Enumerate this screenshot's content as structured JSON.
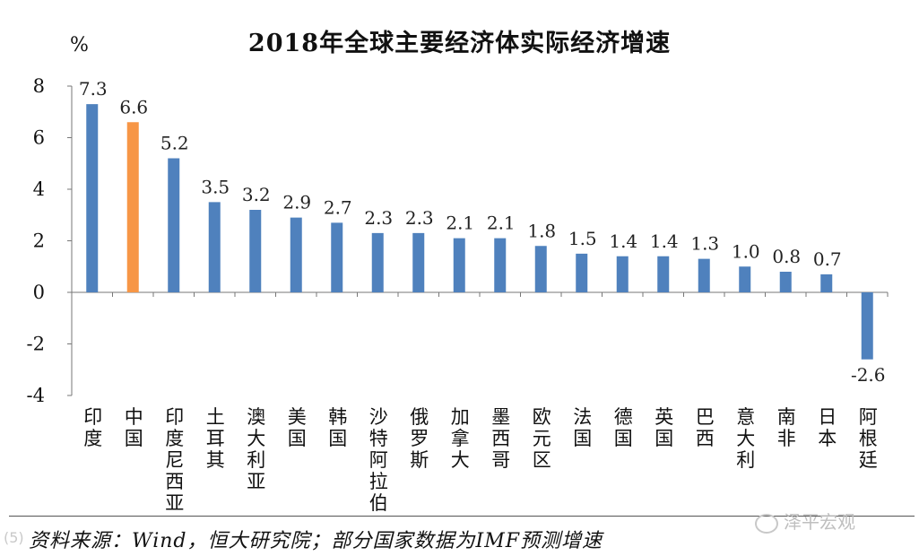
{
  "chart_data": {
    "type": "bar",
    "title": "2018年全球主要经济体实际经济增速",
    "ylabel": "%",
    "ylim": [
      -4,
      8
    ],
    "yticks": [
      8,
      6,
      4,
      2,
      0,
      -2,
      -4
    ],
    "grid": false,
    "categories": [
      "印度",
      "中国",
      "印度尼西亚",
      "土耳其",
      "澳大利亚",
      "美国",
      "韩国",
      "沙特阿拉伯",
      "俄罗斯",
      "加拿大",
      "墨西哥",
      "欧元区",
      "法国",
      "德国",
      "英国",
      "巴西",
      "意大利",
      "南非",
      "日本",
      "阿根廷"
    ],
    "values": [
      7.3,
      6.6,
      5.2,
      3.5,
      3.2,
      2.9,
      2.7,
      2.3,
      2.3,
      2.1,
      2.1,
      1.8,
      1.5,
      1.4,
      1.4,
      1.3,
      1.0,
      0.8,
      0.7,
      -2.6
    ],
    "value_labels": [
      "7.3",
      "6.6",
      "5.2",
      "3.5",
      "3.2",
      "2.9",
      "2.7",
      "2.3",
      "2.3",
      "2.1",
      "2.1",
      "1.8",
      "1.5",
      "1.4",
      "1.4",
      "1.3",
      "1.0",
      "0.8",
      "0.7",
      "-2.6"
    ],
    "colors": {
      "default": "#4f81bd",
      "highlight": "#f79646",
      "highlight_category": "中国",
      "axis": "#777777"
    }
  },
  "source": "资料来源：Wind，恒大研究院；部分国家数据为IMF预测增速",
  "watermark": "泽平宏观",
  "watermark_left": "(5)"
}
